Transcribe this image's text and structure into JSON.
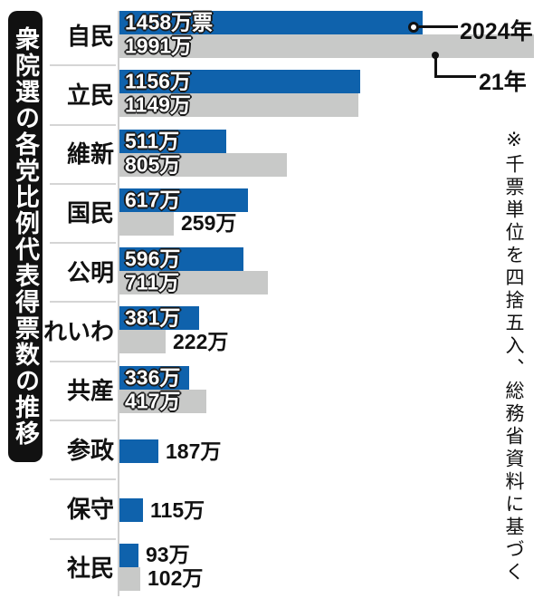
{
  "title": "衆院選の各党比例代表得票数の推移",
  "note": "※千票単位を四捨五入、総務省資料に基づく",
  "legend": {
    "label_2024": "2024年",
    "label_2021": "21年"
  },
  "colors": {
    "bar_2024": "#0f62ac",
    "bar_2021": "#c8c9c8",
    "title_bg": "#111111",
    "title_text": "#ffffff",
    "value_text_on_bar": "#ffffff",
    "value_outline_on_bar": "#1a1a1a",
    "value_text_outside": "#111111"
  },
  "chart_data": {
    "type": "bar",
    "orientation": "horizontal",
    "title": "衆院選の各党比例代表得票数の推移",
    "unit": "万票",
    "legend_position": "top-right",
    "categories": [
      "自民",
      "立民",
      "維新",
      "国民",
      "公明",
      "れいわ",
      "共産",
      "参政",
      "保守",
      "社民"
    ],
    "series": [
      {
        "name": "2024年",
        "color": "#0f62ac",
        "values": [
          1458,
          1156,
          511,
          617,
          596,
          381,
          336,
          187,
          115,
          93
        ]
      },
      {
        "name": "21年",
        "color": "#c8c9c8",
        "values": [
          1991,
          1149,
          805,
          259,
          711,
          222,
          417,
          null,
          null,
          102
        ]
      }
    ],
    "rows": [
      {
        "party": "自民",
        "y2024": {
          "value": 1458,
          "label": "1458万票",
          "label_position": "inside"
        },
        "y2021": {
          "value": 1991,
          "label": "1991万",
          "label_position": "inside"
        }
      },
      {
        "party": "立民",
        "y2024": {
          "value": 1156,
          "label": "1156万",
          "label_position": "inside"
        },
        "y2021": {
          "value": 1149,
          "label": "1149万",
          "label_position": "inside"
        }
      },
      {
        "party": "維新",
        "y2024": {
          "value": 511,
          "label": "511万",
          "label_position": "inside"
        },
        "y2021": {
          "value": 805,
          "label": "805万",
          "label_position": "inside"
        }
      },
      {
        "party": "国民",
        "y2024": {
          "value": 617,
          "label": "617万",
          "label_position": "inside"
        },
        "y2021": {
          "value": 259,
          "label": "259万",
          "label_position": "outside"
        }
      },
      {
        "party": "公明",
        "y2024": {
          "value": 596,
          "label": "596万",
          "label_position": "inside"
        },
        "y2021": {
          "value": 711,
          "label": "711万",
          "label_position": "inside"
        }
      },
      {
        "party": "れいわ",
        "y2024": {
          "value": 381,
          "label": "381万",
          "label_position": "inside"
        },
        "y2021": {
          "value": 222,
          "label": "222万",
          "label_position": "outside"
        }
      },
      {
        "party": "共産",
        "y2024": {
          "value": 336,
          "label": "336万",
          "label_position": "inside"
        },
        "y2021": {
          "value": 417,
          "label": "417万",
          "label_position": "inside"
        }
      },
      {
        "party": "参政",
        "y2024": {
          "value": 187,
          "label": "187万",
          "label_position": "outside"
        },
        "y2021": null
      },
      {
        "party": "保守",
        "y2024": {
          "value": 115,
          "label": "115万",
          "label_position": "outside"
        },
        "y2021": null
      },
      {
        "party": "社民",
        "y2024": {
          "value": 93,
          "label": "93万",
          "label_position": "outside"
        },
        "y2021": {
          "value": 102,
          "label": "102万",
          "label_position": "outside"
        }
      }
    ]
  }
}
